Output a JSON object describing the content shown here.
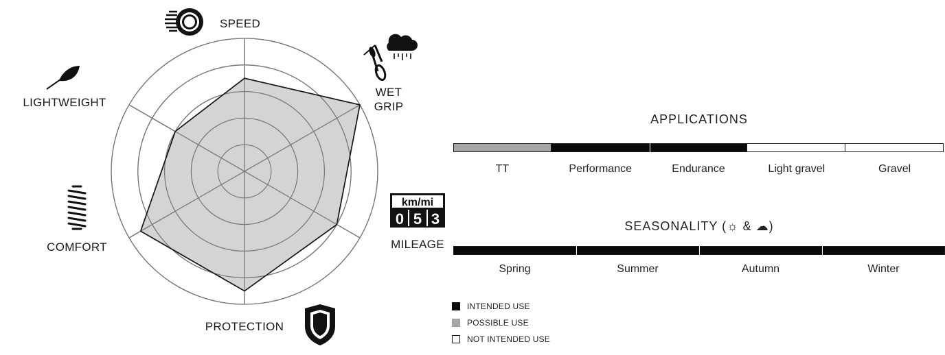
{
  "colors": {
    "intended": "#0a0a0a",
    "possible": "#a6a6a6",
    "not_intended": "#ffffff",
    "radar_fill": "#d4d4d4"
  },
  "chart_data": [
    {
      "type": "radar",
      "axes": [
        "SPEED",
        "WET GRIP",
        "MILEAGE",
        "PROTECTION",
        "COMFORT",
        "LIGHTWEIGHT"
      ],
      "axis_icons": [
        "speed-wheel-icon",
        "rain-cloud-bicycle-icon",
        "odometer-icon",
        "shield-icon",
        "spring-icon",
        "feather-icon"
      ],
      "values": [
        7,
        10,
        8,
        9,
        9,
        6
      ],
      "rlim": [
        0,
        10
      ],
      "rings": [
        2,
        4,
        6,
        8,
        10
      ]
    },
    {
      "type": "segmented-bar",
      "title": "APPLICATIONS",
      "categories": [
        "TT",
        "Performance",
        "Endurance",
        "Light gravel",
        "Gravel"
      ],
      "levels": [
        "possible",
        "intended",
        "intended",
        "not_intended",
        "not_intended"
      ]
    },
    {
      "type": "segmented-bar",
      "title": "SEASONALITY (☼ & ☁)",
      "categories": [
        "Spring",
        "Summer",
        "Autumn",
        "Winter"
      ],
      "levels": [
        "intended",
        "intended",
        "intended",
        "intended"
      ]
    }
  ],
  "odometer": {
    "unit_label": "km/mi",
    "digits": [
      "0",
      "5",
      "3"
    ]
  },
  "legend": [
    {
      "key": "intended",
      "label": "INTENDED USE"
    },
    {
      "key": "possible",
      "label": "POSSIBLE USE"
    },
    {
      "key": "not_intended",
      "label": "NOT INTENDED USE"
    }
  ]
}
